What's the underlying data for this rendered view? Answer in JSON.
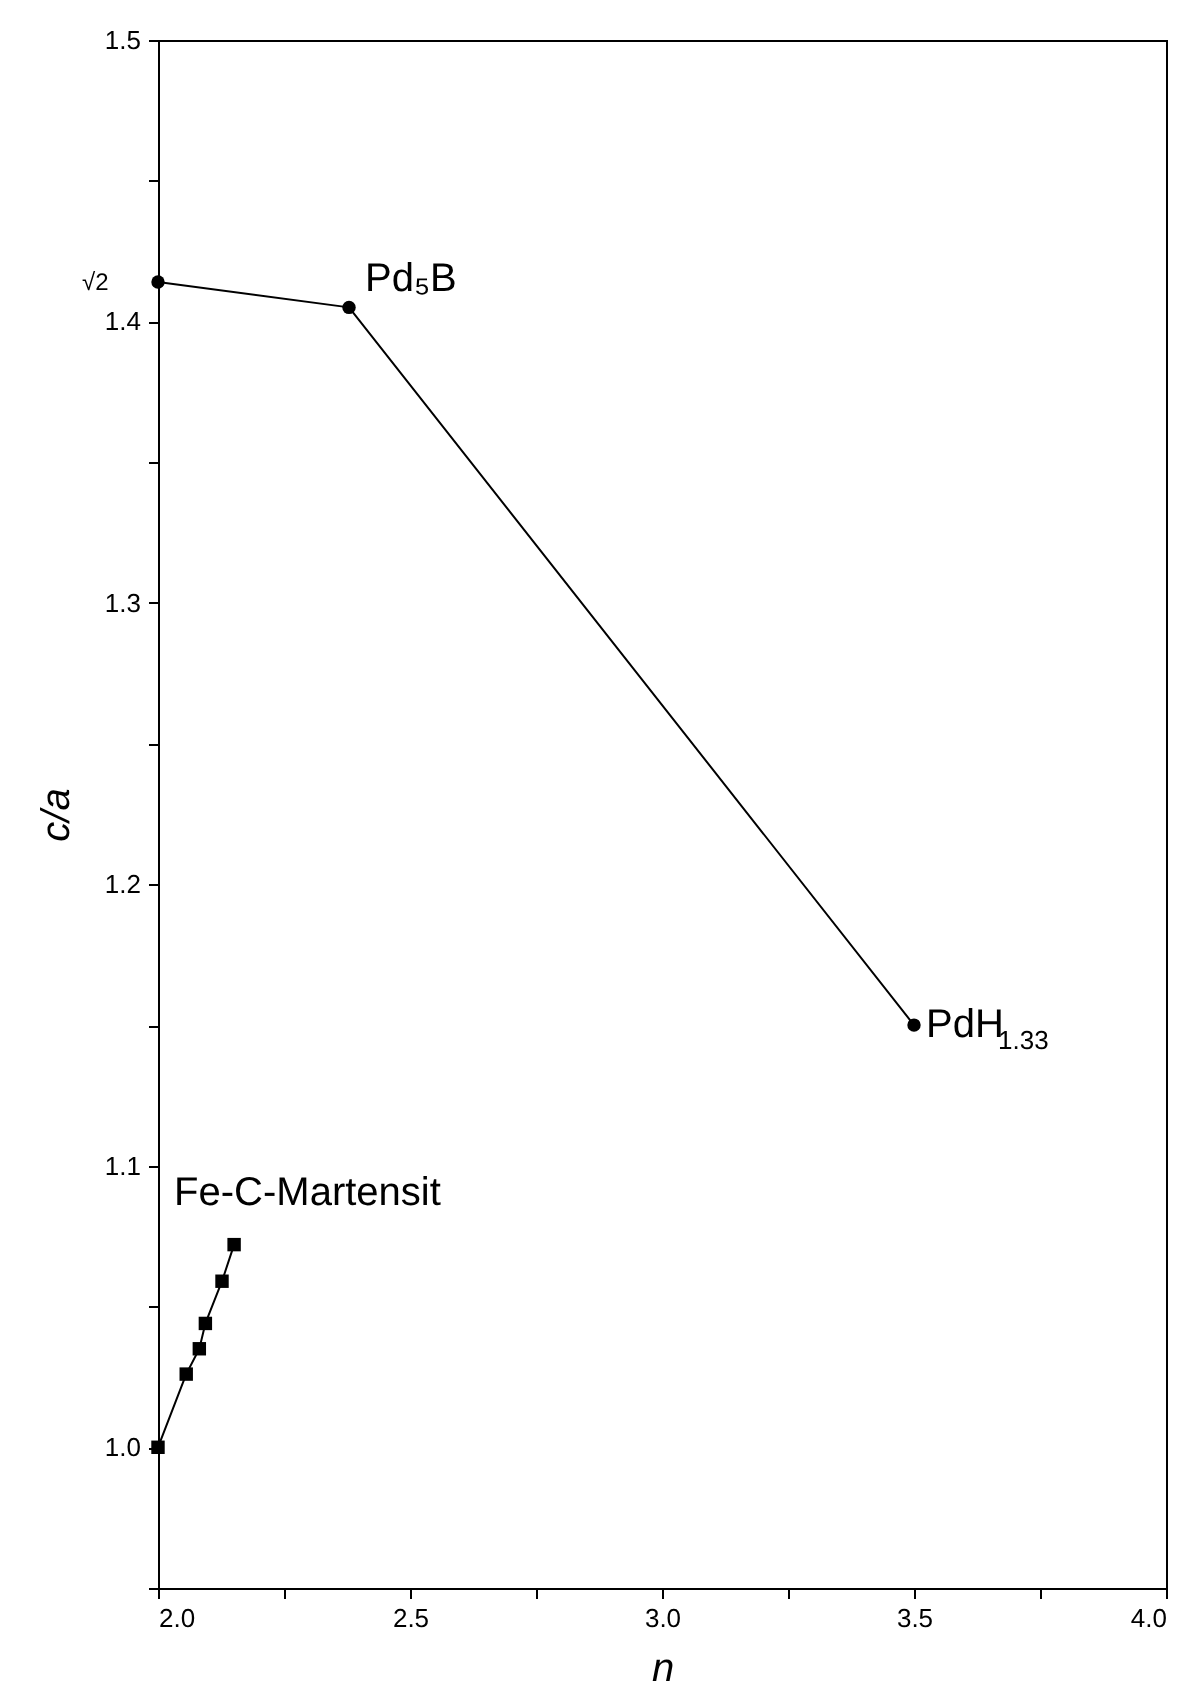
{
  "chart_data": {
    "type": "line",
    "xlabel": "n",
    "ylabel": "c/a",
    "xlim": [
      2.0,
      4.0
    ],
    "ylim": [
      0.95,
      1.5
    ],
    "xticks": [
      {
        "value": 2.0,
        "label": "2.0"
      },
      {
        "value": 2.25,
        "label": null
      },
      2.5,
      {
        "value": 2.75,
        "label": null
      },
      {
        "value": 3.0,
        "label": "3.0"
      },
      {
        "value": 3.25,
        "label": null
      },
      3.5,
      {
        "value": 3.75,
        "label": null
      },
      {
        "value": 4.0,
        "label": "4.0"
      }
    ],
    "yticks": [
      {
        "value": 0.95,
        "label": null
      },
      {
        "value": 1.0,
        "label": "1.0"
      },
      {
        "value": 1.05,
        "label": null
      },
      1.1,
      {
        "value": 1.15,
        "label": null
      },
      1.2,
      {
        "value": 1.25,
        "label": null
      },
      1.3,
      {
        "value": 1.35,
        "label": null
      },
      1.4,
      {
        "value": 1.45,
        "label": null
      },
      {
        "value": 1.5,
        "label": "1.5"
      }
    ],
    "grid": false,
    "line_style": "solid",
    "series": [
      {
        "color": "#000000",
        "marker": "circle",
        "x": [
          2.0,
          2.379,
          3.5
        ],
        "values": [
          1.414,
          1.405,
          1.15
        ]
      },
      {
        "name": "Fe-C-Martensit",
        "color": "#000000",
        "marker": "square",
        "x": [
          2.0,
          2.056,
          2.082,
          2.094,
          2.127,
          2.151
        ],
        "values": [
          1.0,
          1.026,
          1.035,
          1.044,
          1.059,
          1.072
        ]
      }
    ],
    "annotations": [
      {
        "text": "Pd₅B",
        "x": 2.379,
        "y": 1.405
      },
      {
        "text": "PdH$_{1.33}$",
        "x": 3.5,
        "y": 1.15
      },
      {
        "text": "√2",
        "x": 2.0,
        "y": 1.414
      }
    ]
  }
}
